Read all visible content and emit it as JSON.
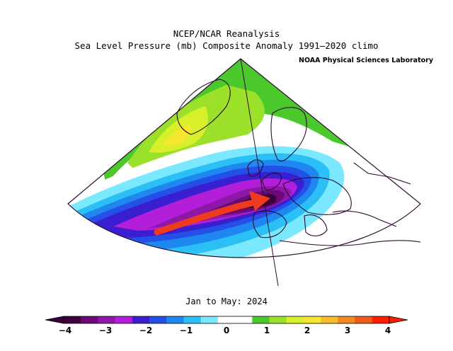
{
  "title": {
    "line1": "NCEP/NCAR Reanalysis",
    "line2": "Sea Level Pressure (mb) Composite Anomaly 1991–2020 climo"
  },
  "credit": "NOAA Physical Sciences Laboratory",
  "period": "Jan to May: 2024",
  "colorbar": {
    "ticks": [
      "−4",
      "−3",
      "−2",
      "−1",
      "0",
      "1",
      "2",
      "3",
      "4"
    ],
    "colors": [
      "#3c003c",
      "#6a0a74",
      "#8d18a8",
      "#b31fd9",
      "#3a1fd0",
      "#2450e8",
      "#1f88f0",
      "#2bc0f5",
      "#7ae8ff",
      "#ffffff",
      "#ffffff",
      "#4ac82c",
      "#9be12a",
      "#d8ef2c",
      "#f6e630",
      "#f5bd2a",
      "#f08a22",
      "#ec5a1e",
      "#ff1d00"
    ]
  },
  "map": {
    "arrow_color": "#f03a1e",
    "arrow_description": "annotation arrow"
  }
}
